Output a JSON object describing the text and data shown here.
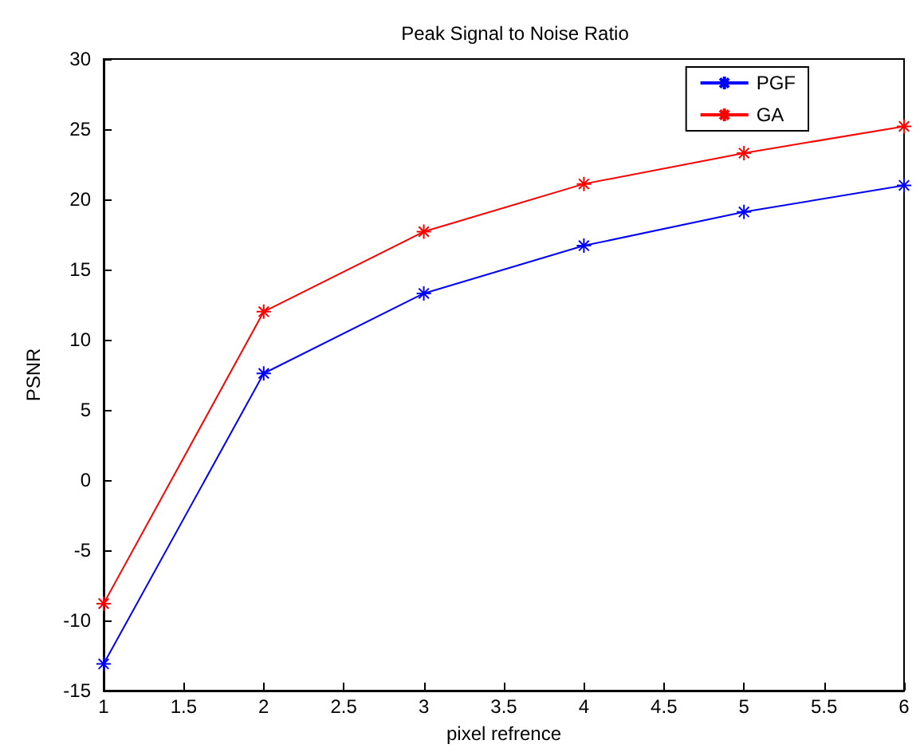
{
  "chart_data": {
    "type": "line",
    "title": "Peak Signal to Noise Ratio",
    "xlabel": "pixel refrence",
    "ylabel": "PSNR",
    "x": [
      1,
      2,
      3,
      4,
      5,
      6
    ],
    "series": [
      {
        "name": "PGF",
        "color": "#0000ff",
        "values": [
          -13.1,
          7.6,
          13.3,
          16.7,
          19.1,
          21.0
        ]
      },
      {
        "name": "GA",
        "color": "#ff0000",
        "values": [
          -8.8,
          12.0,
          17.7,
          21.1,
          23.3,
          25.2
        ]
      }
    ],
    "xlim": [
      1,
      6
    ],
    "xticks": [
      1,
      1.5,
      2,
      2.5,
      3,
      3.5,
      4,
      4.5,
      5,
      5.5,
      6
    ],
    "ylim": [
      -15,
      30
    ],
    "yticks": [
      -15,
      -10,
      -5,
      0,
      5,
      10,
      15,
      20,
      25,
      30
    ],
    "grid": false,
    "legend": "top right",
    "marker": "cross",
    "line_style": "solid"
  }
}
